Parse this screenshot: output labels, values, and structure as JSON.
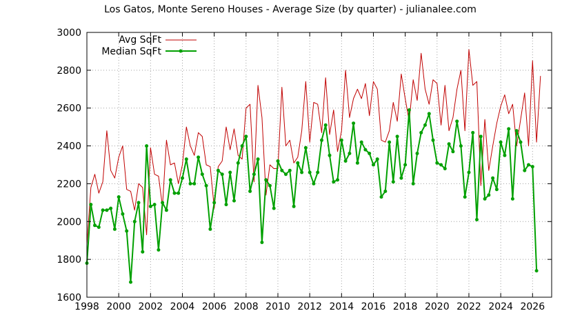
{
  "chart_data": {
    "type": "line",
    "title": "Los Gatos, Monte Sereno Houses - Average Size (by quarter) - julianalee.com",
    "xlim": [
      1998,
      2027.2
    ],
    "ylim": [
      1600,
      3000
    ],
    "x_ticks": [
      "1998",
      "2000",
      "2002",
      "2004",
      "2006",
      "2008",
      "2010",
      "2012",
      "2014",
      "2016",
      "2018",
      "2020",
      "2022",
      "2024",
      "2026"
    ],
    "y_ticks": [
      "1600",
      "1800",
      "2000",
      "2200",
      "2400",
      "2600",
      "2800",
      "3000"
    ],
    "grid": true,
    "legend_position": "top-left",
    "series": [
      {
        "name": "Avg SqFt",
        "color": "#c00000",
        "marker": false,
        "points": [
          [
            1998.0,
            1880
          ],
          [
            1998.25,
            2180
          ],
          [
            1998.5,
            2250
          ],
          [
            1998.75,
            2150
          ],
          [
            1999.0,
            2210
          ],
          [
            1999.25,
            2480
          ],
          [
            1999.5,
            2270
          ],
          [
            1999.75,
            2230
          ],
          [
            2000.0,
            2340
          ],
          [
            2000.25,
            2400
          ],
          [
            2000.5,
            2170
          ],
          [
            2000.75,
            2160
          ],
          [
            2001.0,
            2060
          ],
          [
            2001.25,
            2200
          ],
          [
            2001.5,
            2180
          ],
          [
            2001.75,
            1930
          ],
          [
            2002.0,
            2390
          ],
          [
            2002.25,
            2250
          ],
          [
            2002.5,
            2240
          ],
          [
            2002.75,
            2080
          ],
          [
            2003.0,
            2430
          ],
          [
            2003.25,
            2300
          ],
          [
            2003.5,
            2310
          ],
          [
            2003.75,
            2200
          ],
          [
            2004.0,
            2300
          ],
          [
            2004.25,
            2500
          ],
          [
            2004.5,
            2400
          ],
          [
            2004.75,
            2350
          ],
          [
            2005.0,
            2470
          ],
          [
            2005.25,
            2450
          ],
          [
            2005.5,
            2300
          ],
          [
            2005.75,
            2290
          ],
          [
            2006.0,
            2070
          ],
          [
            2006.25,
            2290
          ],
          [
            2006.5,
            2320
          ],
          [
            2006.75,
            2500
          ],
          [
            2007.0,
            2380
          ],
          [
            2007.25,
            2490
          ],
          [
            2007.5,
            2350
          ],
          [
            2007.75,
            2330
          ],
          [
            2008.0,
            2600
          ],
          [
            2008.25,
            2620
          ],
          [
            2008.5,
            2210
          ],
          [
            2008.75,
            2720
          ],
          [
            2009.0,
            2550
          ],
          [
            2009.25,
            2140
          ],
          [
            2009.5,
            2300
          ],
          [
            2009.75,
            2280
          ],
          [
            2010.0,
            2280
          ],
          [
            2010.25,
            2710
          ],
          [
            2010.5,
            2400
          ],
          [
            2010.75,
            2430
          ],
          [
            2011.0,
            2310
          ],
          [
            2011.25,
            2340
          ],
          [
            2011.5,
            2480
          ],
          [
            2011.75,
            2740
          ],
          [
            2012.0,
            2420
          ],
          [
            2012.25,
            2630
          ],
          [
            2012.5,
            2620
          ],
          [
            2012.75,
            2470
          ],
          [
            2013.0,
            2760
          ],
          [
            2013.25,
            2460
          ],
          [
            2013.5,
            2590
          ],
          [
            2013.75,
            2370
          ],
          [
            2014.0,
            2480
          ],
          [
            2014.25,
            2800
          ],
          [
            2014.5,
            2550
          ],
          [
            2014.75,
            2650
          ],
          [
            2015.0,
            2700
          ],
          [
            2015.25,
            2650
          ],
          [
            2015.5,
            2730
          ],
          [
            2015.75,
            2560
          ],
          [
            2016.0,
            2740
          ],
          [
            2016.25,
            2700
          ],
          [
            2016.5,
            2430
          ],
          [
            2016.75,
            2420
          ],
          [
            2017.0,
            2480
          ],
          [
            2017.25,
            2630
          ],
          [
            2017.5,
            2530
          ],
          [
            2017.75,
            2780
          ],
          [
            2018.0,
            2650
          ],
          [
            2018.25,
            2530
          ],
          [
            2018.5,
            2750
          ],
          [
            2018.75,
            2640
          ],
          [
            2019.0,
            2890
          ],
          [
            2019.25,
            2700
          ],
          [
            2019.5,
            2620
          ],
          [
            2019.75,
            2750
          ],
          [
            2020.0,
            2730
          ],
          [
            2020.25,
            2510
          ],
          [
            2020.5,
            2720
          ],
          [
            2020.75,
            2480
          ],
          [
            2021.0,
            2550
          ],
          [
            2021.25,
            2700
          ],
          [
            2021.5,
            2800
          ],
          [
            2021.75,
            2480
          ],
          [
            2022.0,
            2910
          ],
          [
            2022.25,
            2720
          ],
          [
            2022.5,
            2740
          ],
          [
            2022.75,
            2190
          ],
          [
            2023.0,
            2540
          ],
          [
            2023.25,
            2270
          ],
          [
            2023.5,
            2400
          ],
          [
            2023.75,
            2520
          ],
          [
            2024.0,
            2610
          ],
          [
            2024.25,
            2670
          ],
          [
            2024.5,
            2570
          ],
          [
            2024.75,
            2620
          ],
          [
            2025.0,
            2400
          ],
          [
            2025.25,
            2540
          ],
          [
            2025.5,
            2680
          ],
          [
            2025.75,
            2400
          ],
          [
            2026.0,
            2850
          ],
          [
            2026.25,
            2420
          ],
          [
            2026.5,
            2770
          ]
        ]
      },
      {
        "name": "Median SqFt",
        "color": "#00a000",
        "marker": true,
        "points": [
          [
            1998.0,
            1780
          ],
          [
            1998.25,
            2090
          ],
          [
            1998.5,
            1980
          ],
          [
            1998.75,
            1970
          ],
          [
            1999.0,
            2060
          ],
          [
            1999.25,
            2060
          ],
          [
            1999.5,
            2070
          ],
          [
            1999.75,
            1960
          ],
          [
            2000.0,
            2130
          ],
          [
            2000.25,
            2040
          ],
          [
            2000.5,
            1950
          ],
          [
            2000.75,
            1680
          ],
          [
            2001.0,
            2000
          ],
          [
            2001.25,
            2100
          ],
          [
            2001.5,
            1840
          ],
          [
            2001.75,
            2400
          ],
          [
            2002.0,
            2080
          ],
          [
            2002.25,
            2090
          ],
          [
            2002.5,
            1850
          ],
          [
            2002.75,
            2100
          ],
          [
            2003.0,
            2060
          ],
          [
            2003.25,
            2220
          ],
          [
            2003.5,
            2150
          ],
          [
            2003.75,
            2150
          ],
          [
            2004.0,
            2230
          ],
          [
            2004.25,
            2330
          ],
          [
            2004.5,
            2200
          ],
          [
            2004.75,
            2200
          ],
          [
            2005.0,
            2340
          ],
          [
            2005.25,
            2250
          ],
          [
            2005.5,
            2190
          ],
          [
            2005.75,
            1960
          ],
          [
            2006.0,
            2100
          ],
          [
            2006.25,
            2270
          ],
          [
            2006.5,
            2250
          ],
          [
            2006.75,
            2090
          ],
          [
            2007.0,
            2260
          ],
          [
            2007.25,
            2110
          ],
          [
            2007.5,
            2310
          ],
          [
            2007.75,
            2400
          ],
          [
            2008.0,
            2450
          ],
          [
            2008.25,
            2160
          ],
          [
            2008.5,
            2250
          ],
          [
            2008.75,
            2330
          ],
          [
            2009.0,
            1890
          ],
          [
            2009.25,
            2220
          ],
          [
            2009.5,
            2190
          ],
          [
            2009.75,
            2070
          ],
          [
            2010.0,
            2320
          ],
          [
            2010.25,
            2270
          ],
          [
            2010.5,
            2250
          ],
          [
            2010.75,
            2270
          ],
          [
            2011.0,
            2080
          ],
          [
            2011.25,
            2310
          ],
          [
            2011.5,
            2260
          ],
          [
            2011.75,
            2390
          ],
          [
            2012.0,
            2260
          ],
          [
            2012.25,
            2200
          ],
          [
            2012.5,
            2260
          ],
          [
            2012.75,
            2430
          ],
          [
            2013.0,
            2510
          ],
          [
            2013.25,
            2350
          ],
          [
            2013.5,
            2210
          ],
          [
            2013.75,
            2220
          ],
          [
            2014.0,
            2430
          ],
          [
            2014.25,
            2320
          ],
          [
            2014.5,
            2360
          ],
          [
            2014.75,
            2520
          ],
          [
            2015.0,
            2310
          ],
          [
            2015.25,
            2420
          ],
          [
            2015.5,
            2380
          ],
          [
            2015.75,
            2360
          ],
          [
            2016.0,
            2300
          ],
          [
            2016.25,
            2330
          ],
          [
            2016.5,
            2130
          ],
          [
            2016.75,
            2160
          ],
          [
            2017.0,
            2420
          ],
          [
            2017.25,
            2210
          ],
          [
            2017.5,
            2450
          ],
          [
            2017.75,
            2230
          ],
          [
            2018.0,
            2300
          ],
          [
            2018.25,
            2590
          ],
          [
            2018.5,
            2200
          ],
          [
            2018.75,
            2360
          ],
          [
            2019.0,
            2470
          ],
          [
            2019.25,
            2510
          ],
          [
            2019.5,
            2570
          ],
          [
            2019.75,
            2430
          ],
          [
            2020.0,
            2310
          ],
          [
            2020.25,
            2300
          ],
          [
            2020.5,
            2280
          ],
          [
            2020.75,
            2410
          ],
          [
            2021.0,
            2370
          ],
          [
            2021.25,
            2530
          ],
          [
            2021.5,
            2400
          ],
          [
            2021.75,
            2130
          ],
          [
            2022.0,
            2260
          ],
          [
            2022.25,
            2470
          ],
          [
            2022.5,
            2010
          ],
          [
            2022.75,
            2450
          ],
          [
            2023.0,
            2120
          ],
          [
            2023.25,
            2140
          ],
          [
            2023.5,
            2230
          ],
          [
            2023.75,
            2170
          ],
          [
            2024.0,
            2420
          ],
          [
            2024.25,
            2350
          ],
          [
            2024.5,
            2490
          ],
          [
            2024.75,
            2120
          ],
          [
            2025.0,
            2480
          ],
          [
            2025.25,
            2420
          ],
          [
            2025.5,
            2270
          ],
          [
            2025.75,
            2300
          ],
          [
            2026.0,
            2290
          ],
          [
            2026.25,
            1740
          ]
        ]
      }
    ]
  }
}
